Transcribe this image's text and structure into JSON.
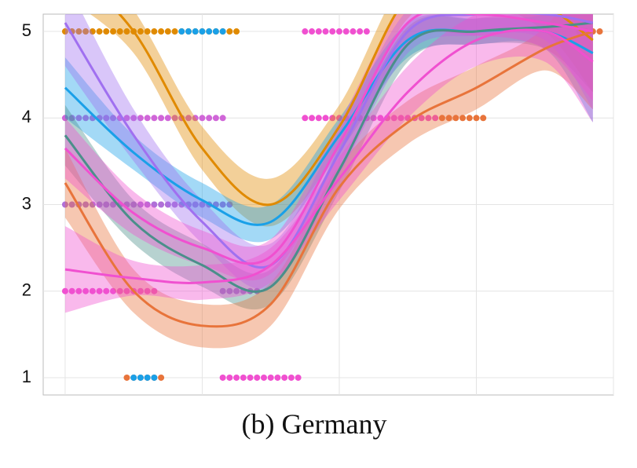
{
  "chart_data": {
    "type": "smooth",
    "caption": "(b) Germany",
    "ylim": [
      0.8,
      5.2
    ],
    "yticks": [
      1,
      2,
      3,
      4,
      5
    ],
    "xlim": [
      -0.32,
      8.0
    ],
    "xgrid": [
      0,
      2,
      4,
      6,
      8
    ],
    "grid": true,
    "series": [
      {
        "color": "#e08a00",
        "x": [
          0,
          1,
          2,
          3,
          4,
          5,
          6,
          7,
          7.7
        ],
        "values": [
          5.8,
          5.0,
          3.65,
          3.0,
          3.9,
          5.4,
          5.6,
          5.3,
          4.9
        ],
        "lower": [
          5.4,
          4.75,
          3.4,
          2.75,
          3.65,
          5.15,
          5.35,
          5.0,
          4.3
        ],
        "upper": [
          6.2,
          5.25,
          3.9,
          3.3,
          4.15,
          5.65,
          5.85,
          5.6,
          5.5
        ]
      },
      {
        "color": "#1aa0e8",
        "x": [
          0,
          1,
          2,
          3,
          4,
          5,
          6,
          7,
          7.7
        ],
        "values": [
          4.35,
          3.6,
          3.05,
          2.8,
          3.8,
          4.9,
          5.0,
          5.0,
          4.75
        ],
        "lower": [
          4.0,
          3.4,
          2.85,
          2.6,
          3.6,
          4.7,
          4.85,
          4.8,
          3.95
        ],
        "upper": [
          4.7,
          3.8,
          3.25,
          3.0,
          4.0,
          5.1,
          5.15,
          5.2,
          5.55
        ]
      },
      {
        "color": "#4a8f8a",
        "x": [
          0,
          1,
          2,
          3,
          4,
          5,
          6,
          7,
          7.7
        ],
        "values": [
          3.8,
          2.8,
          2.3,
          2.05,
          3.4,
          4.85,
          5.0,
          5.05,
          5.1
        ],
        "lower": [
          3.45,
          2.55,
          2.05,
          1.85,
          3.15,
          4.65,
          4.85,
          4.8,
          4.3
        ],
        "upper": [
          4.15,
          3.05,
          2.55,
          2.25,
          3.65,
          5.05,
          5.15,
          5.3,
          5.9
        ]
      },
      {
        "color": "#e8743b",
        "x": [
          0,
          1,
          2,
          3,
          4,
          5,
          6,
          7,
          7.7
        ],
        "values": [
          3.25,
          2.0,
          1.6,
          1.85,
          3.2,
          3.95,
          4.35,
          4.8,
          5.0
        ],
        "lower": [
          2.85,
          1.75,
          1.35,
          1.6,
          2.95,
          3.7,
          4.1,
          4.55,
          4.1
        ],
        "upper": [
          3.65,
          2.25,
          1.85,
          2.1,
          3.45,
          4.2,
          4.6,
          5.05,
          5.9
        ]
      },
      {
        "color": "#a070f0",
        "x": [
          0,
          1,
          2,
          3,
          4,
          5,
          6,
          7,
          7.7
        ],
        "values": [
          5.1,
          3.8,
          2.8,
          2.3,
          3.6,
          5.0,
          5.2,
          5.2,
          5.1
        ],
        "lower": [
          4.6,
          3.5,
          2.55,
          2.05,
          3.35,
          4.75,
          4.95,
          4.9,
          4.1
        ],
        "upper": [
          5.6,
          4.1,
          3.05,
          2.55,
          3.85,
          5.25,
          5.45,
          5.5,
          6.1
        ]
      },
      {
        "color": "#f050d0",
        "x": [
          0,
          1,
          2,
          3,
          4,
          5,
          6,
          7,
          7.7
        ],
        "values": [
          2.25,
          2.15,
          2.1,
          2.3,
          3.3,
          4.3,
          4.9,
          5.0,
          4.65
        ],
        "lower": [
          1.75,
          1.95,
          1.9,
          2.1,
          3.05,
          4.0,
          4.6,
          4.65,
          3.95
        ],
        "upper": [
          2.75,
          2.35,
          2.3,
          2.5,
          3.55,
          4.6,
          5.2,
          5.35,
          5.35
        ]
      },
      {
        "color": "#f050d0",
        "x": [
          0,
          1,
          2,
          3,
          4,
          5,
          6,
          7,
          7.7
        ],
        "values": [
          3.65,
          2.9,
          2.5,
          2.4,
          3.7,
          5.1,
          5.2,
          5.1,
          5.0
        ],
        "lower": [
          3.3,
          2.65,
          2.3,
          2.2,
          3.45,
          4.85,
          4.95,
          4.8,
          4.2
        ],
        "upper": [
          4.0,
          3.15,
          2.7,
          2.6,
          3.95,
          5.35,
          5.45,
          5.4,
          5.8
        ]
      }
    ],
    "points": [
      {
        "color": "#e08a00",
        "y": 5,
        "x": [
          0,
          0.1,
          0.2,
          0.3,
          0.4,
          0.5,
          0.6,
          0.7,
          0.8,
          0.9,
          1.0,
          1.1,
          1.2,
          1.3,
          1.4,
          1.5,
          1.6,
          1.7,
          1.8,
          1.9,
          2.0,
          2.1,
          2.2,
          2.3,
          2.4,
          2.5
        ]
      },
      {
        "color": "#1aa0e8",
        "y": 5,
        "x": [
          1.7,
          1.8,
          1.9,
          2.0,
          2.1,
          2.2,
          2.3
        ]
      },
      {
        "color": "#f050d0",
        "y": 5,
        "x": [
          3.5,
          3.6,
          3.7,
          3.8,
          3.9,
          4.0,
          4.1,
          4.2,
          4.3,
          4.4
        ]
      },
      {
        "color": "#e8743b",
        "y": 5,
        "x": [
          7.5,
          7.6,
          7.7,
          7.8
        ]
      },
      {
        "color": "#d066d8",
        "y": 4,
        "x": [
          0,
          0.1,
          0.2,
          0.3,
          0.4,
          0.5,
          0.6,
          0.7,
          0.8,
          0.9,
          1.0,
          1.1,
          1.2,
          1.3,
          1.4,
          1.5,
          1.6,
          1.7,
          1.8,
          1.9,
          2.0,
          2.1,
          2.2,
          2.3
        ]
      },
      {
        "color": "#f050d0",
        "y": 4,
        "x": [
          3.5,
          3.6,
          3.7,
          3.8,
          3.9,
          4.0,
          4.1,
          4.2,
          4.3,
          4.4,
          4.5,
          4.6,
          4.7,
          4.8,
          4.9,
          5.0,
          5.1,
          5.2,
          5.3,
          5.4
        ]
      },
      {
        "color": "#e8743b",
        "y": 4,
        "x": [
          5.5,
          5.6,
          5.7,
          5.8,
          5.9,
          6.0,
          6.1
        ]
      },
      {
        "color": "#b070d8",
        "y": 3,
        "x": [
          0,
          0.1,
          0.2,
          0.3,
          0.4,
          0.5,
          0.6,
          0.7,
          0.8,
          0.9,
          1.0,
          1.1,
          1.2,
          1.3,
          1.4,
          1.5,
          1.6,
          1.7,
          1.8,
          1.9,
          2.0,
          2.1,
          2.2,
          2.3,
          2.4
        ]
      },
      {
        "color": "#f050d0",
        "y": 2,
        "x": [
          0,
          0.1,
          0.2,
          0.3,
          0.4,
          0.5,
          0.6,
          0.7,
          0.8,
          0.9,
          1.0,
          1.1,
          1.2,
          1.3
        ]
      },
      {
        "color": "#b070d8",
        "y": 2,
        "x": [
          2.3,
          2.4,
          2.5,
          2.6,
          2.7,
          2.8
        ]
      },
      {
        "color": "#e8743b",
        "y": 1,
        "x": [
          0.9,
          1.0,
          1.1,
          1.2,
          1.3,
          1.4
        ]
      },
      {
        "color": "#1aa0e8",
        "y": 1,
        "x": [
          1.0,
          1.1,
          1.2,
          1.3
        ]
      },
      {
        "color": "#f050d0",
        "y": 1,
        "x": [
          2.3,
          2.4,
          2.5,
          2.6,
          2.7,
          2.8,
          2.9,
          3.0,
          3.1,
          3.2,
          3.3,
          3.4
        ]
      }
    ]
  }
}
